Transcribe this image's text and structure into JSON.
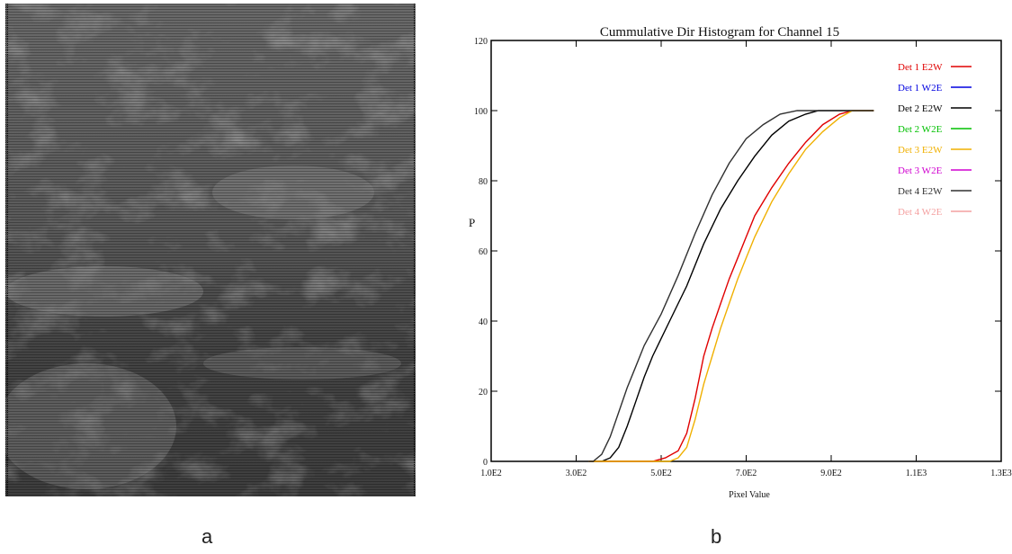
{
  "panel_labels": {
    "left": "a",
    "right": "b"
  },
  "image": {
    "description_icon": "satellite-image"
  },
  "chart_data": {
    "type": "line",
    "title": "Cummulative Dir Histogram for Channel 15",
    "xlabel": "Pixel Value",
    "ylabel": "P",
    "xlim": [
      100,
      1300
    ],
    "ylim": [
      0,
      120
    ],
    "xticks": [
      100,
      300,
      500,
      700,
      900,
      1100,
      1300
    ],
    "xtick_labels": [
      "1.0E2",
      "3.0E2",
      "5.0E2",
      "7.0E2",
      "9.0E2",
      "1.1E3",
      "1.3E3"
    ],
    "yticks": [
      0,
      20,
      40,
      60,
      80,
      100,
      120
    ],
    "ytick_labels": [
      "0",
      "20",
      "40",
      "60",
      "80",
      "100",
      "120"
    ],
    "grid": false,
    "legend_position": "top-right",
    "series": [
      {
        "name": "Det 1 E2W",
        "color": "#e00000",
        "x": [
          330,
          480,
          510,
          540,
          560,
          580,
          600,
          620,
          640,
          660,
          680,
          700,
          720,
          760,
          800,
          840,
          880,
          920,
          950,
          970,
          1000
        ],
        "y": [
          0,
          0,
          1,
          3,
          8,
          18,
          30,
          38,
          45,
          52,
          58,
          64,
          70,
          78,
          85,
          91,
          96,
          99,
          100,
          100,
          100
        ]
      },
      {
        "name": "Det 1 W2E",
        "color": "#0000e0",
        "x": [],
        "y": []
      },
      {
        "name": "Det 2 E2W",
        "color": "#000000",
        "x": [
          330,
          360,
          380,
          400,
          420,
          440,
          460,
          480,
          520,
          560,
          600,
          640,
          680,
          720,
          760,
          800,
          840,
          870,
          900,
          1000
        ],
        "y": [
          0,
          0,
          1,
          4,
          10,
          17,
          24,
          30,
          40,
          50,
          62,
          72,
          80,
          87,
          93,
          97,
          99,
          100,
          100,
          100
        ]
      },
      {
        "name": "Det 2 W2E",
        "color": "#00c000",
        "x": [],
        "y": []
      },
      {
        "name": "Det 3 E2W",
        "color": "#f0b000",
        "x": [
          330,
          520,
          540,
          560,
          580,
          600,
          620,
          640,
          660,
          680,
          700,
          720,
          760,
          800,
          840,
          880,
          920,
          950,
          1000
        ],
        "y": [
          0,
          0,
          1,
          4,
          12,
          22,
          30,
          38,
          45,
          52,
          58,
          64,
          74,
          82,
          89,
          94,
          98,
          100,
          100
        ]
      },
      {
        "name": "Det 3 W2E",
        "color": "#d000d0",
        "x": [],
        "y": []
      },
      {
        "name": "Det 4 E2W",
        "color": "#303030",
        "x": [
          330,
          340,
          360,
          380,
          400,
          420,
          440,
          460,
          500,
          540,
          580,
          620,
          660,
          700,
          740,
          780,
          820,
          850,
          880,
          1000
        ],
        "y": [
          0,
          0,
          2,
          7,
          14,
          21,
          27,
          33,
          42,
          53,
          65,
          76,
          85,
          92,
          96,
          99,
          100,
          100,
          100,
          100
        ]
      },
      {
        "name": "Det 4 W2E",
        "color": "#f4a0a0",
        "x": [],
        "y": []
      }
    ]
  }
}
